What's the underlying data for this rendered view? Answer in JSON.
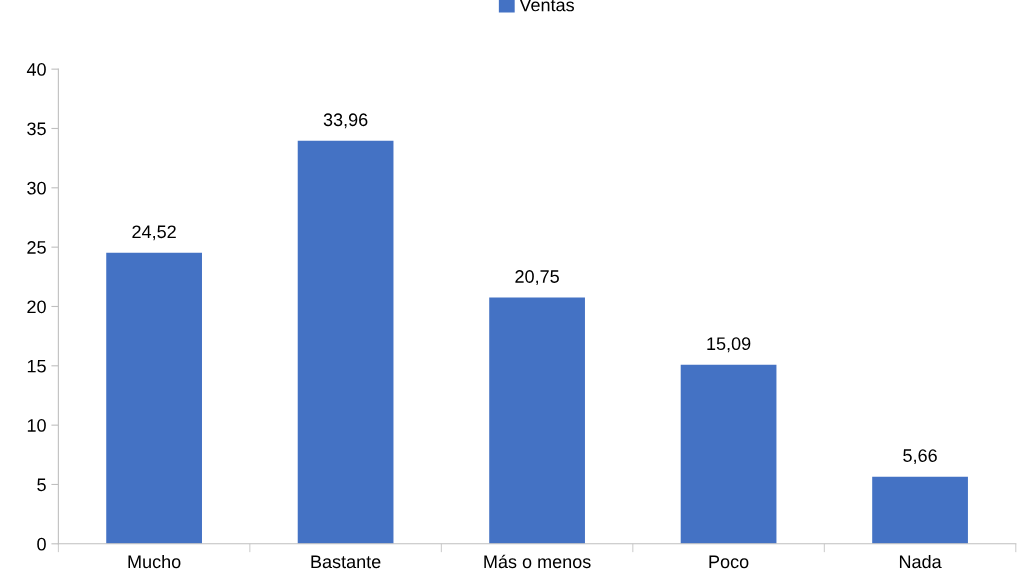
{
  "chart_data": {
    "type": "bar",
    "categories": [
      "Mucho",
      "Bastante",
      "Más o menos",
      "Poco",
      "Nada"
    ],
    "series": [
      {
        "name": "Ventas",
        "color": "#4472c4",
        "values": [
          24.52,
          33.96,
          20.75,
          15.09,
          5.66
        ],
        "value_labels": [
          "24,52",
          "33,96",
          "20,75",
          "15,09",
          "5,66"
        ]
      }
    ],
    "ylim": [
      0,
      40
    ],
    "yticks": [
      0,
      5,
      10,
      15,
      20,
      25,
      30,
      35,
      40
    ],
    "grid": false,
    "legend": "top"
  }
}
